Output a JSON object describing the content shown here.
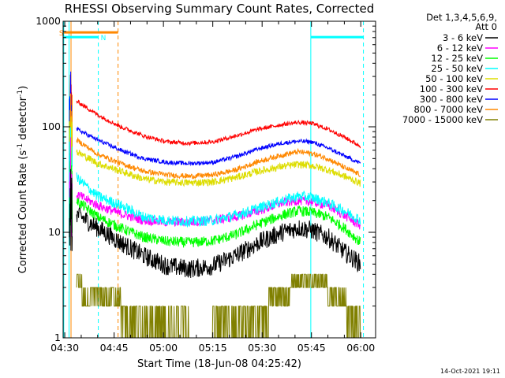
{
  "chart_data": {
    "type": "line",
    "title": "RHESSI Observing Summary Count Rates, Corrected",
    "xlabel": "Start Time (18-Jun-08 04:25:42)",
    "ylabel": "Corrected Count Rate (s⁻¹ detector⁻¹)",
    "ylabel_main": "Corrected Count Rate (s",
    "ylabel_sup1": "-1",
    "ylabel_mid": " detector",
    "ylabel_sup2": "-1",
    "ylabel_end": ")",
    "y_scale": "log",
    "ylim": [
      1,
      1000
    ],
    "xlim_minutes": [
      269.5,
      364.5
    ],
    "x_ticks": [
      {
        "minute": 270,
        "label": "04:30"
      },
      {
        "minute": 285,
        "label": "04:45"
      },
      {
        "minute": 300,
        "label": "05:00"
      },
      {
        "minute": 315,
        "label": "05:15"
      },
      {
        "minute": 330,
        "label": "05:30"
      },
      {
        "minute": 345,
        "label": "05:45"
      },
      {
        "minute": 360,
        "label": "06:00"
      }
    ],
    "y_ticks": [
      {
        "value": 1,
        "label": "1"
      },
      {
        "value": 10,
        "label": "10"
      },
      {
        "value": 100,
        "label": "100"
      },
      {
        "value": 1000,
        "label": "1000"
      }
    ],
    "legend_header": [
      "Det 1,3,4,5,6,9,",
      "Att 0"
    ],
    "series": [
      {
        "name": "3 - 6 keV",
        "color": "#000000",
        "points": [
          [
            273.6,
            15
          ],
          [
            280,
            11
          ],
          [
            287,
            8
          ],
          [
            294,
            6
          ],
          [
            301,
            4.8
          ],
          [
            308,
            4.5
          ],
          [
            315,
            4.8
          ],
          [
            322,
            6
          ],
          [
            329,
            8
          ],
          [
            336,
            10
          ],
          [
            341,
            11
          ],
          [
            345,
            10.5
          ],
          [
            350,
            9
          ],
          [
            355,
            6.5
          ],
          [
            360,
            5
          ]
        ]
      },
      {
        "name": "6 - 12 keV",
        "color": "#ff00ff",
        "points": [
          [
            273.6,
            23
          ],
          [
            280,
            18
          ],
          [
            287,
            15
          ],
          [
            294,
            13
          ],
          [
            301,
            12.5
          ],
          [
            308,
            12.5
          ],
          [
            315,
            13
          ],
          [
            322,
            14
          ],
          [
            329,
            16
          ],
          [
            336,
            19
          ],
          [
            341,
            20
          ],
          [
            345,
            19.5
          ],
          [
            350,
            18
          ],
          [
            355,
            14.5
          ],
          [
            360,
            11.5
          ]
        ]
      },
      {
        "name": "12 - 25 keV",
        "color": "#00ff00",
        "points": [
          [
            273.6,
            20
          ],
          [
            280,
            14
          ],
          [
            287,
            11
          ],
          [
            294,
            9
          ],
          [
            301,
            8.2
          ],
          [
            308,
            8
          ],
          [
            315,
            8.3
          ],
          [
            322,
            9.5
          ],
          [
            329,
            12
          ],
          [
            336,
            14.5
          ],
          [
            341,
            16
          ],
          [
            345,
            15.5
          ],
          [
            350,
            14
          ],
          [
            355,
            11
          ],
          [
            360,
            8
          ]
        ]
      },
      {
        "name": "25 - 50 keV",
        "color": "#00ffff",
        "points": [
          [
            273.6,
            33
          ],
          [
            280,
            22
          ],
          [
            287,
            18
          ],
          [
            294,
            14
          ],
          [
            301,
            13
          ],
          [
            308,
            12.7
          ],
          [
            315,
            13
          ],
          [
            322,
            14.5
          ],
          [
            329,
            17
          ],
          [
            336,
            20
          ],
          [
            341,
            22
          ],
          [
            345,
            21.5
          ],
          [
            350,
            19
          ],
          [
            355,
            16
          ],
          [
            360,
            13
          ]
        ]
      },
      {
        "name": "50 - 100 keV",
        "color": "#dddd00",
        "points": [
          [
            273.6,
            58
          ],
          [
            280,
            45
          ],
          [
            287,
            38
          ],
          [
            294,
            32
          ],
          [
            301,
            30
          ],
          [
            308,
            29.5
          ],
          [
            315,
            30
          ],
          [
            322,
            33
          ],
          [
            329,
            38
          ],
          [
            336,
            42
          ],
          [
            341,
            44
          ],
          [
            345,
            43
          ],
          [
            350,
            39
          ],
          [
            355,
            34
          ],
          [
            360,
            29
          ]
        ]
      },
      {
        "name": "100 - 300 keV",
        "color": "#ff0000",
        "points": [
          [
            273.6,
            175
          ],
          [
            280,
            130
          ],
          [
            287,
            100
          ],
          [
            294,
            82
          ],
          [
            301,
            72
          ],
          [
            308,
            70
          ],
          [
            315,
            72
          ],
          [
            322,
            82
          ],
          [
            329,
            95
          ],
          [
            336,
            105
          ],
          [
            341,
            110
          ],
          [
            345,
            108
          ],
          [
            350,
            95
          ],
          [
            355,
            80
          ],
          [
            360,
            65
          ]
        ]
      },
      {
        "name": "300 - 800 keV",
        "color": "#0000ff",
        "points": [
          [
            273.6,
            95
          ],
          [
            280,
            75
          ],
          [
            287,
            60
          ],
          [
            294,
            50
          ],
          [
            301,
            46
          ],
          [
            308,
            45
          ],
          [
            315,
            46
          ],
          [
            322,
            52
          ],
          [
            329,
            62
          ],
          [
            336,
            70
          ],
          [
            341,
            73
          ],
          [
            345,
            72
          ],
          [
            350,
            63
          ],
          [
            355,
            53
          ],
          [
            360,
            45
          ]
        ]
      },
      {
        "name": "800 - 7000 keV",
        "color": "#ff8800",
        "points": [
          [
            273.6,
            75
          ],
          [
            280,
            55
          ],
          [
            287,
            45
          ],
          [
            294,
            38
          ],
          [
            301,
            35
          ],
          [
            308,
            34
          ],
          [
            315,
            35
          ],
          [
            322,
            39
          ],
          [
            329,
            47
          ],
          [
            336,
            54
          ],
          [
            341,
            58
          ],
          [
            345,
            56
          ],
          [
            350,
            50
          ],
          [
            355,
            41
          ],
          [
            360,
            35
          ]
        ]
      },
      {
        "name": "7000 - 15000 keV",
        "color": "#808000",
        "points": [
          [
            273.6,
            3.2
          ],
          [
            280,
            2.5
          ],
          [
            287,
            2
          ],
          [
            294,
            1.6
          ],
          [
            301,
            1.2
          ],
          [
            308,
            1
          ],
          [
            315,
            1
          ],
          [
            322,
            1.1
          ],
          [
            329,
            1.7
          ],
          [
            336,
            2.5
          ],
          [
            341,
            3.5
          ],
          [
            345,
            4
          ],
          [
            350,
            3
          ],
          [
            355,
            2.2
          ],
          [
            360,
            1.2
          ]
        ]
      }
    ],
    "early_spike_series_colors": [
      "#ff0000",
      "#0000ff",
      "#ff8800",
      "#dddd00",
      "#00ffff",
      "#00ff00",
      "#ff00ff",
      "#000000"
    ],
    "vertical_lines": [
      {
        "minute": 269.7,
        "style": "solid",
        "color": "#00ffff"
      },
      {
        "minute": 271.3,
        "style": "solid",
        "color": "#00ffff"
      },
      {
        "minute": 271.9,
        "style": "solid",
        "color": "#ff8800"
      },
      {
        "minute": 280.2,
        "style": "dashed",
        "color": "#00ffff"
      },
      {
        "minute": 286.2,
        "style": "dashed",
        "color": "#ff8800"
      },
      {
        "minute": 344.8,
        "style": "solid",
        "color": "#00ffff"
      },
      {
        "minute": 360.8,
        "style": "dashed",
        "color": "#00ffff"
      }
    ],
    "flag_bars": [
      {
        "label": "S",
        "start": 269.7,
        "end": 286.2,
        "color": "#ff8800",
        "y_frac": 0.035
      },
      {
        "label": "N",
        "start": 269.7,
        "end": 280.2,
        "color": "#00ffff",
        "y_frac": 0.05
      },
      {
        "label": "",
        "start": 344.8,
        "end": 360.8,
        "color": "#00ffff",
        "y_frac": 0.05
      }
    ],
    "timestamp": "14-Oct-2021 19:11"
  }
}
